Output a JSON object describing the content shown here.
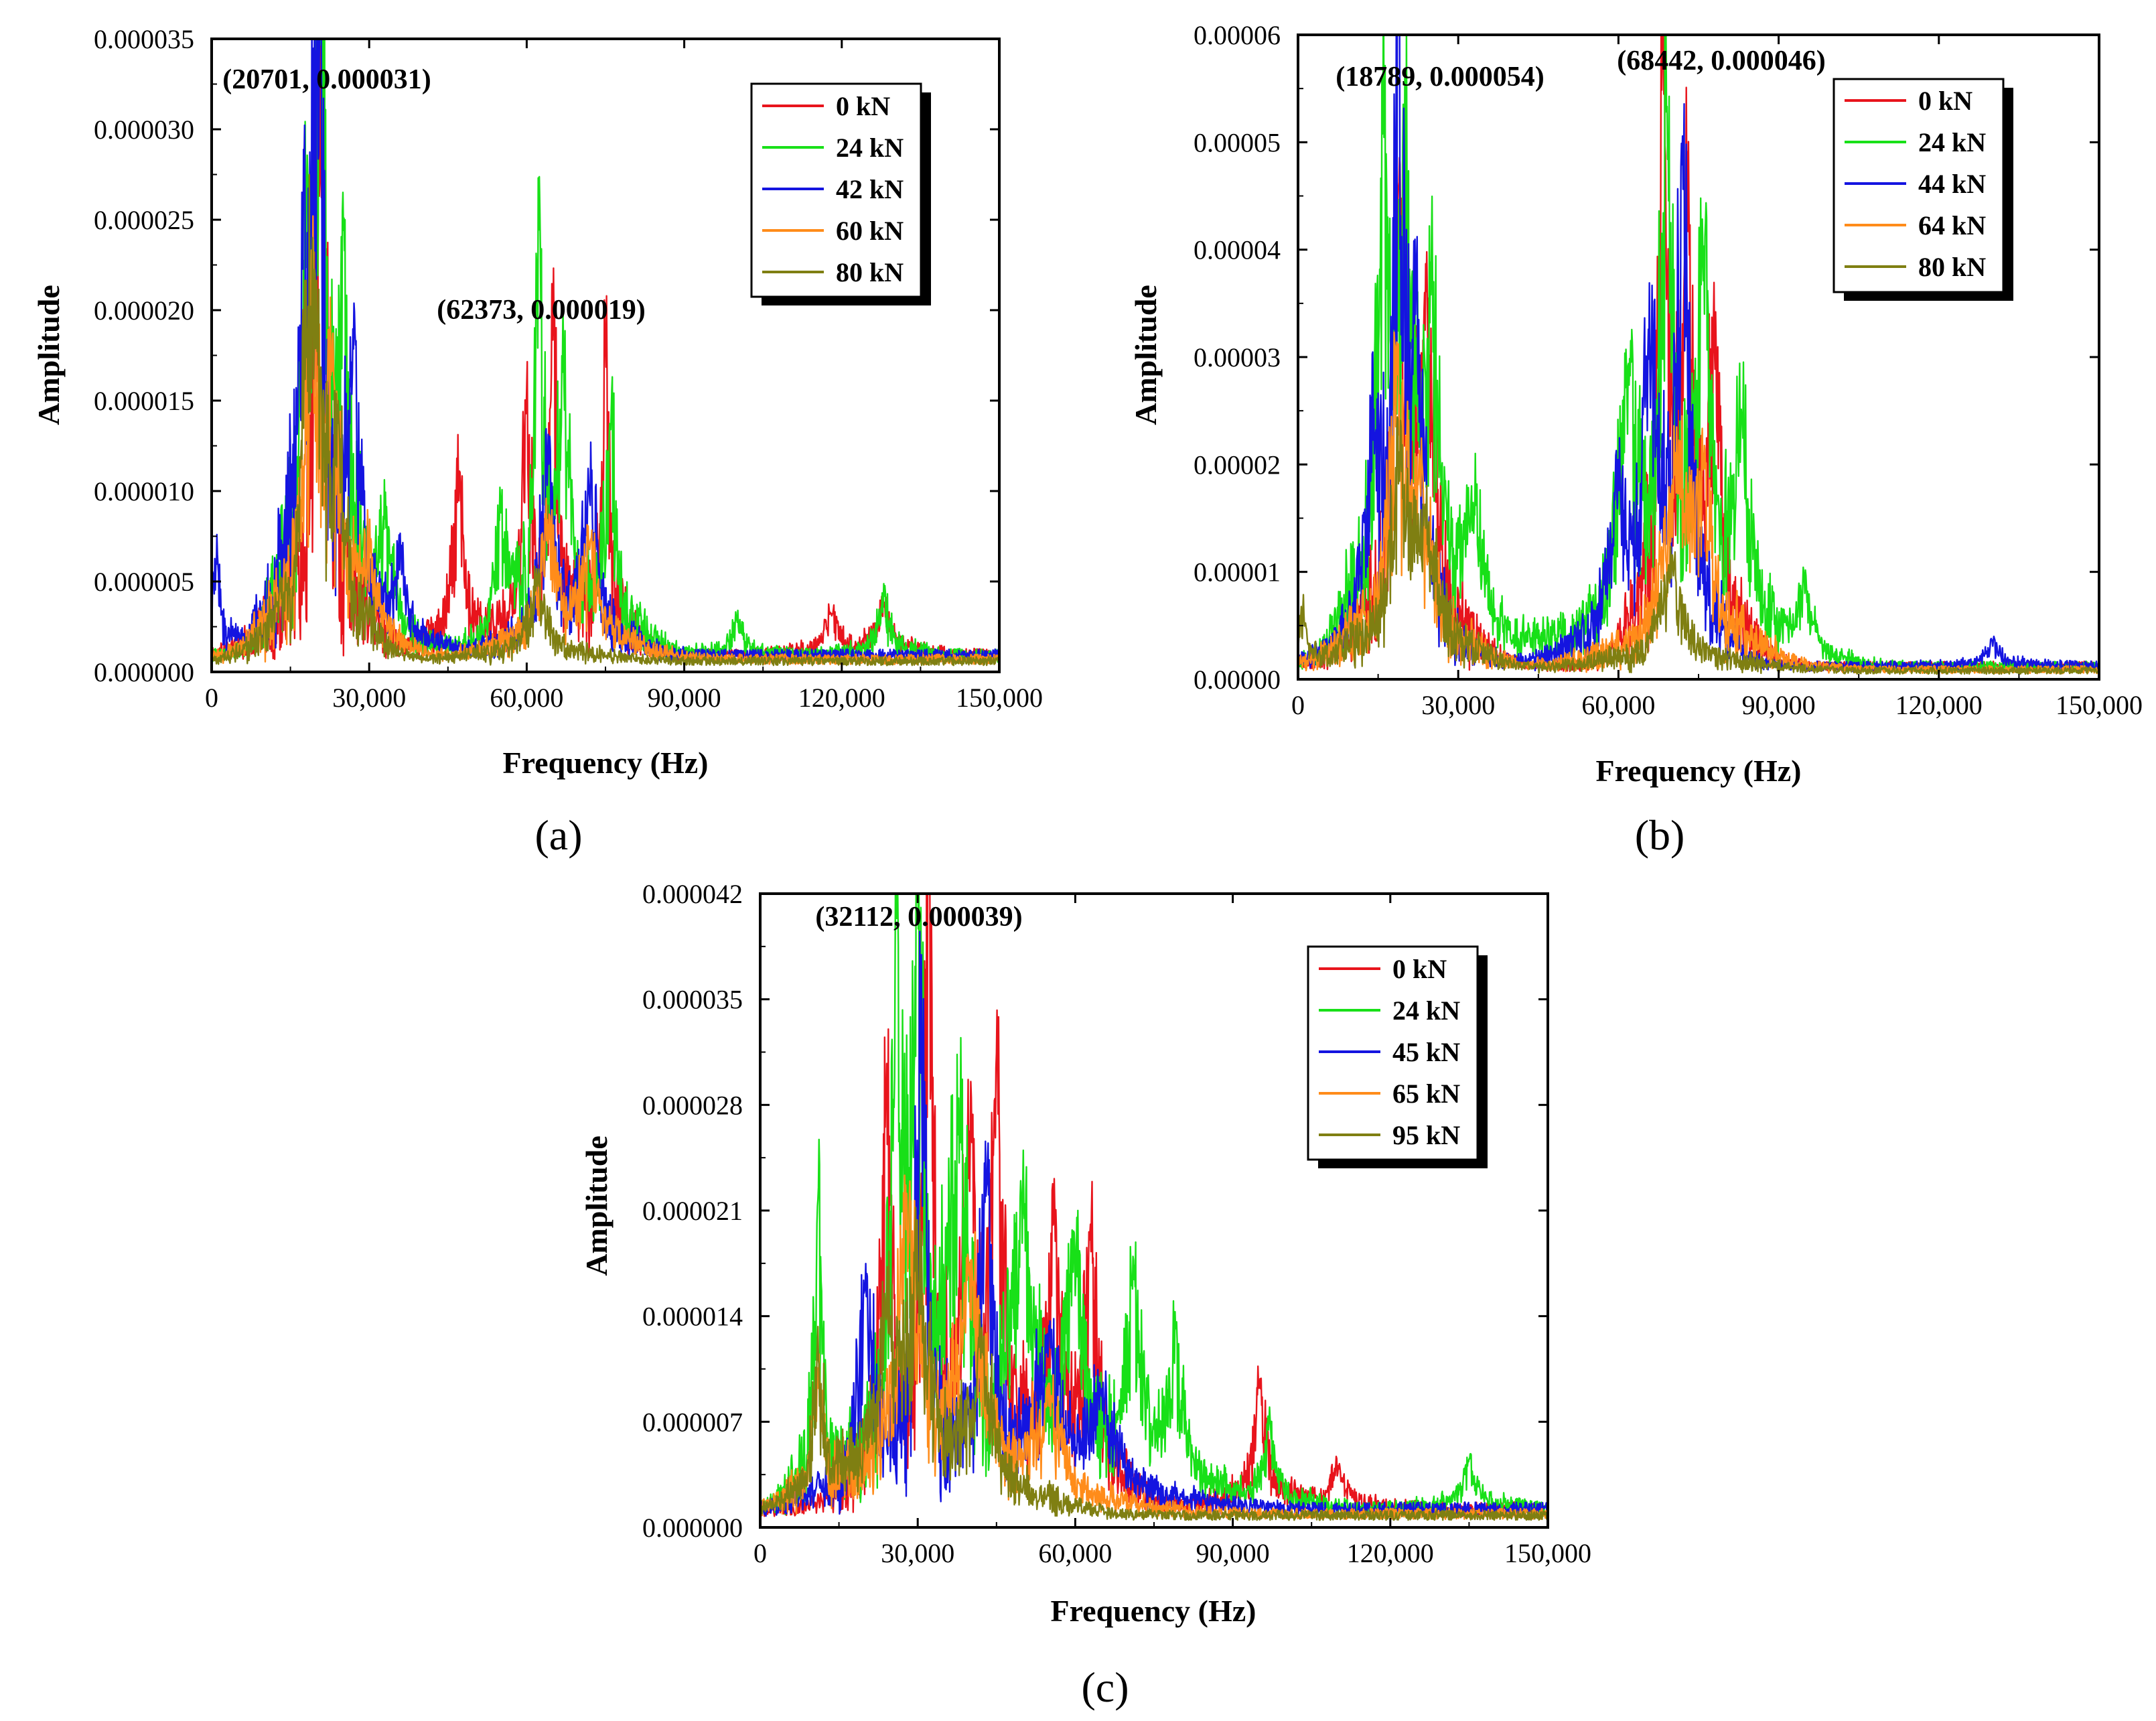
{
  "chart_data": [
    {
      "panel": "a",
      "type": "line",
      "xlabel": "Frequency (Hz)",
      "ylabel": "Amplitude",
      "xlim": [
        0,
        150000
      ],
      "ylim": [
        0,
        3.5e-05
      ],
      "xticks": [
        0,
        30000,
        60000,
        90000,
        120000,
        150000
      ],
      "xtick_labels": [
        "0",
        "30,000",
        "60,000",
        "90,000",
        "120,000",
        "150,000"
      ],
      "yticks": [
        0,
        5e-06,
        1e-05,
        1.5e-05,
        2e-05,
        2.5e-05,
        3e-05,
        3.5e-05
      ],
      "ytick_labels": [
        "0.000000",
        "0.000005",
        "0.000010",
        "0.000015",
        "0.000020",
        "0.000025",
        "0.000030",
        "0.000035"
      ],
      "panel_label": "(a)",
      "legend_position": "top-right",
      "annotations": [
        {
          "text": "(20701, 0.000031)",
          "x": 20701,
          "y": 3.1e-05
        },
        {
          "text": "(62373, 0.000019)",
          "x": 62373,
          "y": 1.9e-05
        }
      ],
      "series": [
        {
          "name": "0 kN",
          "color": "#e8141c",
          "baseline": 9e-07,
          "peaks": [
            [
              20701,
              2.7e-05,
              1500
            ],
            [
              47000,
              9e-06,
              1200
            ],
            [
              65000,
              1.6e-05,
              900
            ],
            [
              75000,
              1.6e-05,
              900
            ],
            [
              60000,
              1.1e-05,
              1000
            ],
            [
              128000,
              2.5e-06,
              1500
            ],
            [
              118000,
              2e-06,
              1500
            ]
          ]
        },
        {
          "name": "24 kN",
          "color": "#18e018",
          "baseline": 9e-07,
          "peaks": [
            [
              20701,
              3.1e-05,
              1200
            ],
            [
              25000,
              1.4e-05,
              1300
            ],
            [
              18000,
              1.7e-05,
              1000
            ],
            [
              62373,
              1.9e-05,
              900
            ],
            [
              67000,
              1.2e-05,
              1200
            ],
            [
              76000,
              1.2e-05,
              1200
            ],
            [
              33000,
              6e-06,
              1500
            ],
            [
              55000,
              6e-06,
              1200
            ],
            [
              128000,
              3e-06,
              1200
            ],
            [
              100000,
              2e-06,
              1200
            ]
          ]
        },
        {
          "name": "42 kN",
          "color": "#1414e0",
          "baseline": 9e-07,
          "peaks": [
            [
              20300,
              2.8e-05,
              1100
            ],
            [
              17500,
              1.8e-05,
              1200
            ],
            [
              27000,
              1.2e-05,
              1400
            ],
            [
              64000,
              9e-06,
              1500
            ],
            [
              72000,
              8e-06,
              1500
            ],
            [
              36000,
              4e-06,
              1500
            ],
            [
              1000,
              5e-06,
              800
            ]
          ]
        },
        {
          "name": "60 kN",
          "color": "#ff8c1a",
          "baseline": 7e-07,
          "peaks": [
            [
              19000,
              1.7e-05,
              1500
            ],
            [
              23000,
              1.2e-05,
              1400
            ],
            [
              64000,
              6e-06,
              2000
            ],
            [
              72000,
              5e-06,
              2000
            ],
            [
              30000,
              4e-06,
              1500
            ]
          ]
        },
        {
          "name": "80 kN",
          "color": "#7f7f12",
          "baseline": 6e-07,
          "peaks": [
            [
              20000,
              1.5e-05,
              1500
            ],
            [
              24000,
              9e-06,
              1200
            ],
            [
              18000,
              1.1e-05,
              1000
            ],
            [
              62000,
              4e-06,
              2000
            ]
          ]
        }
      ]
    },
    {
      "panel": "b",
      "type": "line",
      "xlabel": "Frequency (Hz)",
      "ylabel": "Amplitude",
      "xlim": [
        0,
        150000
      ],
      "ylim": [
        0,
        6e-05
      ],
      "xticks": [
        0,
        30000,
        60000,
        90000,
        120000,
        150000
      ],
      "xtick_labels": [
        "0",
        "30,000",
        "60,000",
        "90,000",
        "120,000",
        "150,000"
      ],
      "yticks": [
        0,
        1e-05,
        2e-05,
        3e-05,
        4e-05,
        5e-05,
        6e-05
      ],
      "ytick_labels": [
        "0.00000",
        "0.00001",
        "0.00002",
        "0.00003",
        "0.00004",
        "0.00005",
        "0.00006"
      ],
      "panel_label": "(b)",
      "legend_position": "top-right",
      "annotations": [
        {
          "text": "(18789, 0.000054)",
          "x": 18789,
          "y": 5.4e-05
        },
        {
          "text": "(68442, 0.000046)",
          "x": 68442,
          "y": 4.6e-05
        }
      ],
      "series": [
        {
          "name": "0 kN",
          "color": "#e8141c",
          "baseline": 1.2e-06,
          "peaks": [
            [
              19000,
              3.7e-05,
              1300
            ],
            [
              68442,
              4.6e-05,
              1000
            ],
            [
              73000,
              3.3e-05,
              1200
            ],
            [
              24000,
              2.6e-05,
              1500
            ],
            [
              78000,
              2.4e-05,
              1200
            ]
          ]
        },
        {
          "name": "24 kN",
          "color": "#18e018",
          "baseline": 1.2e-06,
          "peaks": [
            [
              16000,
              4e-05,
              1200
            ],
            [
              20000,
              3.5e-05,
              1400
            ],
            [
              25000,
              2.5e-05,
              1600
            ],
            [
              62000,
              2.2e-05,
              2500
            ],
            [
              69000,
              4.1e-05,
              1200
            ],
            [
              76000,
              2.8e-05,
              1500
            ],
            [
              83000,
              1.8e-05,
              1500
            ],
            [
              95000,
              6e-06,
              1500
            ],
            [
              33000,
              1e-05,
              2000
            ]
          ]
        },
        {
          "name": "44 kN",
          "color": "#1414e0",
          "baseline": 1.2e-06,
          "peaks": [
            [
              18789,
              5.4e-05,
              900
            ],
            [
              14000,
              1.5e-05,
              1500
            ],
            [
              22000,
              2.2e-05,
              1500
            ],
            [
              66000,
              2.4e-05,
              1500
            ],
            [
              72000,
              4e-05,
              1200
            ],
            [
              60000,
              1.2e-05,
              2000
            ],
            [
              130000,
              2e-06,
              1500
            ]
          ]
        },
        {
          "name": "64 kN",
          "color": "#ff8c1a",
          "baseline": 9e-07,
          "peaks": [
            [
              18500,
              2.2e-05,
              1800
            ],
            [
              23000,
              1.3e-05,
              1800
            ],
            [
              71000,
              1.6e-05,
              2500
            ],
            [
              76000,
              1.5e-05,
              1500
            ]
          ]
        },
        {
          "name": "80 kN",
          "color": "#7f7f12",
          "baseline": 8e-07,
          "peaks": [
            [
              19000,
              1.8e-05,
              1800
            ],
            [
              24000,
              1.1e-05,
              1800
            ],
            [
              70000,
              9e-06,
              2500
            ],
            [
              1000,
              5e-06,
              600
            ]
          ]
        }
      ]
    },
    {
      "panel": "c",
      "type": "line",
      "xlabel": "Frequency (Hz)",
      "ylabel": "Amplitude",
      "xlim": [
        0,
        150000
      ],
      "ylim": [
        0,
        4.2e-05
      ],
      "xticks": [
        0,
        30000,
        60000,
        90000,
        120000,
        150000
      ],
      "xtick_labels": [
        "0",
        "30,000",
        "60,000",
        "90,000",
        "120,000",
        "150,000"
      ],
      "yticks": [
        0,
        7e-06,
        1.4e-05,
        2.1e-05,
        2.8e-05,
        3.5e-05,
        4.2e-05
      ],
      "ytick_labels": [
        "0.000000",
        "0.000007",
        "0.000014",
        "0.000021",
        "0.000028",
        "0.000035",
        "0.000042"
      ],
      "panel_label": "(c)",
      "legend_position": "top-right",
      "annotations": [
        {
          "text": "(32112, 0.000039)",
          "x": 32112,
          "y": 3.9e-05
        }
      ],
      "series": [
        {
          "name": "0 kN",
          "color": "#e8141c",
          "baseline": 1.2e-06,
          "peaks": [
            [
              32112,
              3.9e-05,
              800
            ],
            [
              24000,
              2.5e-05,
              1200
            ],
            [
              45000,
              2.4e-05,
              1200
            ],
            [
              40000,
              1.9e-05,
              1400
            ],
            [
              56000,
              1.6e-05,
              1400
            ],
            [
              63000,
              1.5e-05,
              1400
            ],
            [
              95000,
              7e-06,
              1500
            ],
            [
              110000,
              2.5e-06,
              1500
            ]
          ]
        },
        {
          "name": "24 kN",
          "color": "#18e018",
          "baseline": 1.2e-06,
          "peaks": [
            [
              30000,
              3.5e-05,
              1000
            ],
            [
              26000,
              2.9e-05,
              1200
            ],
            [
              11000,
              1.9e-05,
              900
            ],
            [
              38000,
              2.1e-05,
              1800
            ],
            [
              50000,
              1.6e-05,
              2500
            ],
            [
              60000,
              1.4e-05,
              1800
            ],
            [
              71000,
              1.1e-05,
              1800
            ],
            [
              79000,
              9e-06,
              1500
            ],
            [
              97000,
              5e-06,
              1500
            ],
            [
              135000,
              3e-06,
              1500
            ]
          ]
        },
        {
          "name": "45 kN",
          "color": "#1414e0",
          "baseline": 1.2e-06,
          "peaks": [
            [
              30500,
              2.9e-05,
              1000
            ],
            [
              43000,
              1.9e-05,
              1400
            ],
            [
              20000,
              1.4e-05,
              1500
            ],
            [
              55000,
              9e-06,
              2500
            ],
            [
              65000,
              6e-06,
              3000
            ]
          ]
        },
        {
          "name": "65 kN",
          "color": "#ff8c1a",
          "baseline": 9e-07,
          "peaks": [
            [
              28000,
              1.7e-05,
              2500
            ],
            [
              40000,
              1.2e-05,
              2500
            ],
            [
              11000,
              8e-06,
              1000
            ],
            [
              55000,
              6e-06,
              3000
            ]
          ]
        },
        {
          "name": "95 kN",
          "color": "#7f7f12",
          "baseline": 8e-07,
          "peaks": [
            [
              11000,
              9e-06,
              900
            ],
            [
              30000,
              1.3e-05,
              2500
            ],
            [
              24000,
              1e-05,
              2000
            ],
            [
              42000,
              8e-06,
              2500
            ]
          ]
        }
      ]
    }
  ]
}
